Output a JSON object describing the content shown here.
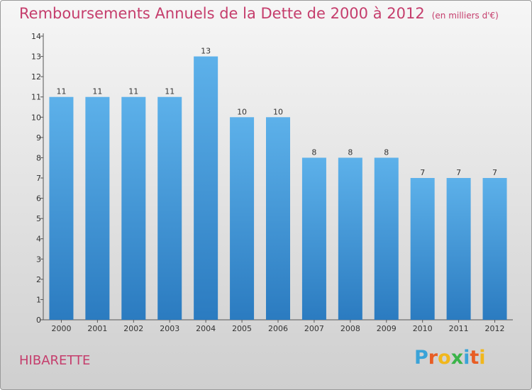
{
  "title": "Remboursements Annuels de la Dette de 2000 à 2012",
  "subtitle": "(en milliers d'€)",
  "town": "HIBARETTE",
  "logo": {
    "letters": [
      "P",
      "r",
      "o",
      "x",
      "i",
      "t",
      "i"
    ],
    "colors": [
      "#3aa3d8",
      "#e85d24",
      "#f1b71c",
      "#3ab449",
      "#3aa3d8",
      "#e85d24",
      "#f1b71c"
    ]
  },
  "colors": {
    "bar_light": "#5db1ea",
    "bar_dark": "#2b7bc0",
    "title": "#c53d6c"
  },
  "chart_data": {
    "type": "bar",
    "title": "Remboursements Annuels de la Dette de 2000 à 2012",
    "xlabel": "",
    "ylabel": "",
    "categories": [
      "2000",
      "2001",
      "2002",
      "2003",
      "2004",
      "2005",
      "2006",
      "2007",
      "2008",
      "2009",
      "2010",
      "2011",
      "2012"
    ],
    "values": [
      11,
      11,
      11,
      11,
      13,
      10,
      10,
      8,
      8,
      8,
      7,
      7,
      7
    ],
    "ylim": [
      0,
      14
    ],
    "yticks": [
      0,
      1,
      2,
      3,
      4,
      5,
      6,
      7,
      8,
      9,
      10,
      11,
      12,
      13,
      14
    ],
    "grid": false
  }
}
